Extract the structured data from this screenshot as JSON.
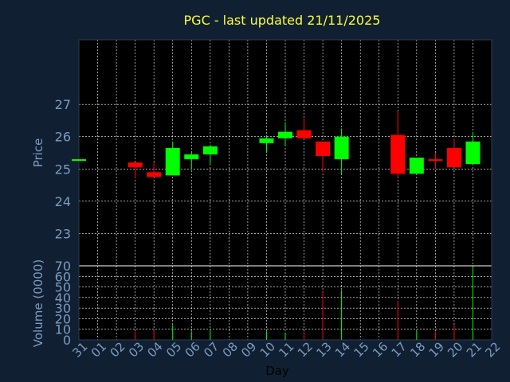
{
  "chart_data": {
    "type": "candlestick",
    "title": "PGC - last updated 21/11/2025",
    "xlabel": "Day",
    "price_panel": {
      "ylabel": "Price",
      "ylim": [
        22,
        29
      ],
      "yticks": [
        "23",
        "24",
        "25",
        "26",
        "27"
      ],
      "tick_values": [
        23,
        24,
        25,
        26,
        27
      ]
    },
    "volume_panel": {
      "ylabel": "Volume (0000)",
      "ylim": [
        0,
        70
      ],
      "yticks": [
        "0",
        "10",
        "20",
        "30",
        "40",
        "50",
        "60",
        "70"
      ],
      "tick_values": [
        0,
        10,
        20,
        30,
        40,
        50,
        60,
        70
      ]
    },
    "x_ticks": [
      "31",
      "01",
      "02",
      "03",
      "04",
      "05",
      "06",
      "07",
      "08",
      "09",
      "10",
      "11",
      "12",
      "13",
      "14",
      "15",
      "16",
      "17",
      "18",
      "19",
      "20",
      "21",
      "22"
    ],
    "grid": true,
    "colors": {
      "background": "#102032",
      "panel": "#000000",
      "up": "#00ff00",
      "down": "#ff0000",
      "grid": "#ffffff",
      "title": "#ffff33",
      "axis_text": "#7c9bc1"
    },
    "candles": [
      {
        "day": "31",
        "open": 25.25,
        "close": 25.3,
        "high": 25.3,
        "low": 25.25,
        "volume": 0,
        "dir": "up"
      },
      {
        "day": "03",
        "open": 25.2,
        "close": 25.05,
        "high": 25.2,
        "low": 24.7,
        "volume": 8,
        "dir": "down"
      },
      {
        "day": "04",
        "open": 24.9,
        "close": 24.75,
        "high": 25.2,
        "low": 24.75,
        "volume": 9,
        "dir": "down"
      },
      {
        "day": "05",
        "open": 24.8,
        "close": 25.65,
        "high": 25.85,
        "low": 24.8,
        "volume": 14,
        "dir": "up"
      },
      {
        "day": "06",
        "open": 25.3,
        "close": 25.45,
        "high": 25.5,
        "low": 25.0,
        "volume": 8,
        "dir": "up"
      },
      {
        "day": "07",
        "open": 25.45,
        "close": 25.7,
        "high": 25.75,
        "low": 25.15,
        "volume": 10,
        "dir": "up"
      },
      {
        "day": "10",
        "open": 25.8,
        "close": 25.95,
        "high": 26.0,
        "low": 25.5,
        "volume": 8,
        "dir": "up"
      },
      {
        "day": "11",
        "open": 25.95,
        "close": 26.15,
        "high": 26.45,
        "low": 25.7,
        "volume": 7,
        "dir": "up"
      },
      {
        "day": "12",
        "open": 26.2,
        "close": 25.95,
        "high": 26.6,
        "low": 25.95,
        "volume": 8,
        "dir": "down"
      },
      {
        "day": "13",
        "open": 25.85,
        "close": 25.4,
        "high": 25.85,
        "low": 24.9,
        "volume": 45,
        "dir": "down"
      },
      {
        "day": "14",
        "open": 25.3,
        "close": 26.0,
        "high": 26.25,
        "low": 24.85,
        "volume": 47,
        "dir": "up"
      },
      {
        "day": "17",
        "open": 26.05,
        "close": 24.85,
        "high": 26.8,
        "low": 24.75,
        "volume": 37,
        "dir": "down"
      },
      {
        "day": "18",
        "open": 24.85,
        "close": 25.35,
        "high": 25.35,
        "low": 24.85,
        "volume": 9,
        "dir": "up"
      },
      {
        "day": "19",
        "open": 25.3,
        "close": 25.25,
        "high": 25.5,
        "low": 25.0,
        "volume": 8,
        "dir": "down"
      },
      {
        "day": "20",
        "open": 25.65,
        "close": 25.05,
        "high": 25.95,
        "low": 25.05,
        "volume": 14,
        "dir": "down"
      },
      {
        "day": "21",
        "open": 25.15,
        "close": 25.85,
        "high": 26.15,
        "low": 25.15,
        "volume": 69,
        "dir": "up"
      }
    ]
  }
}
